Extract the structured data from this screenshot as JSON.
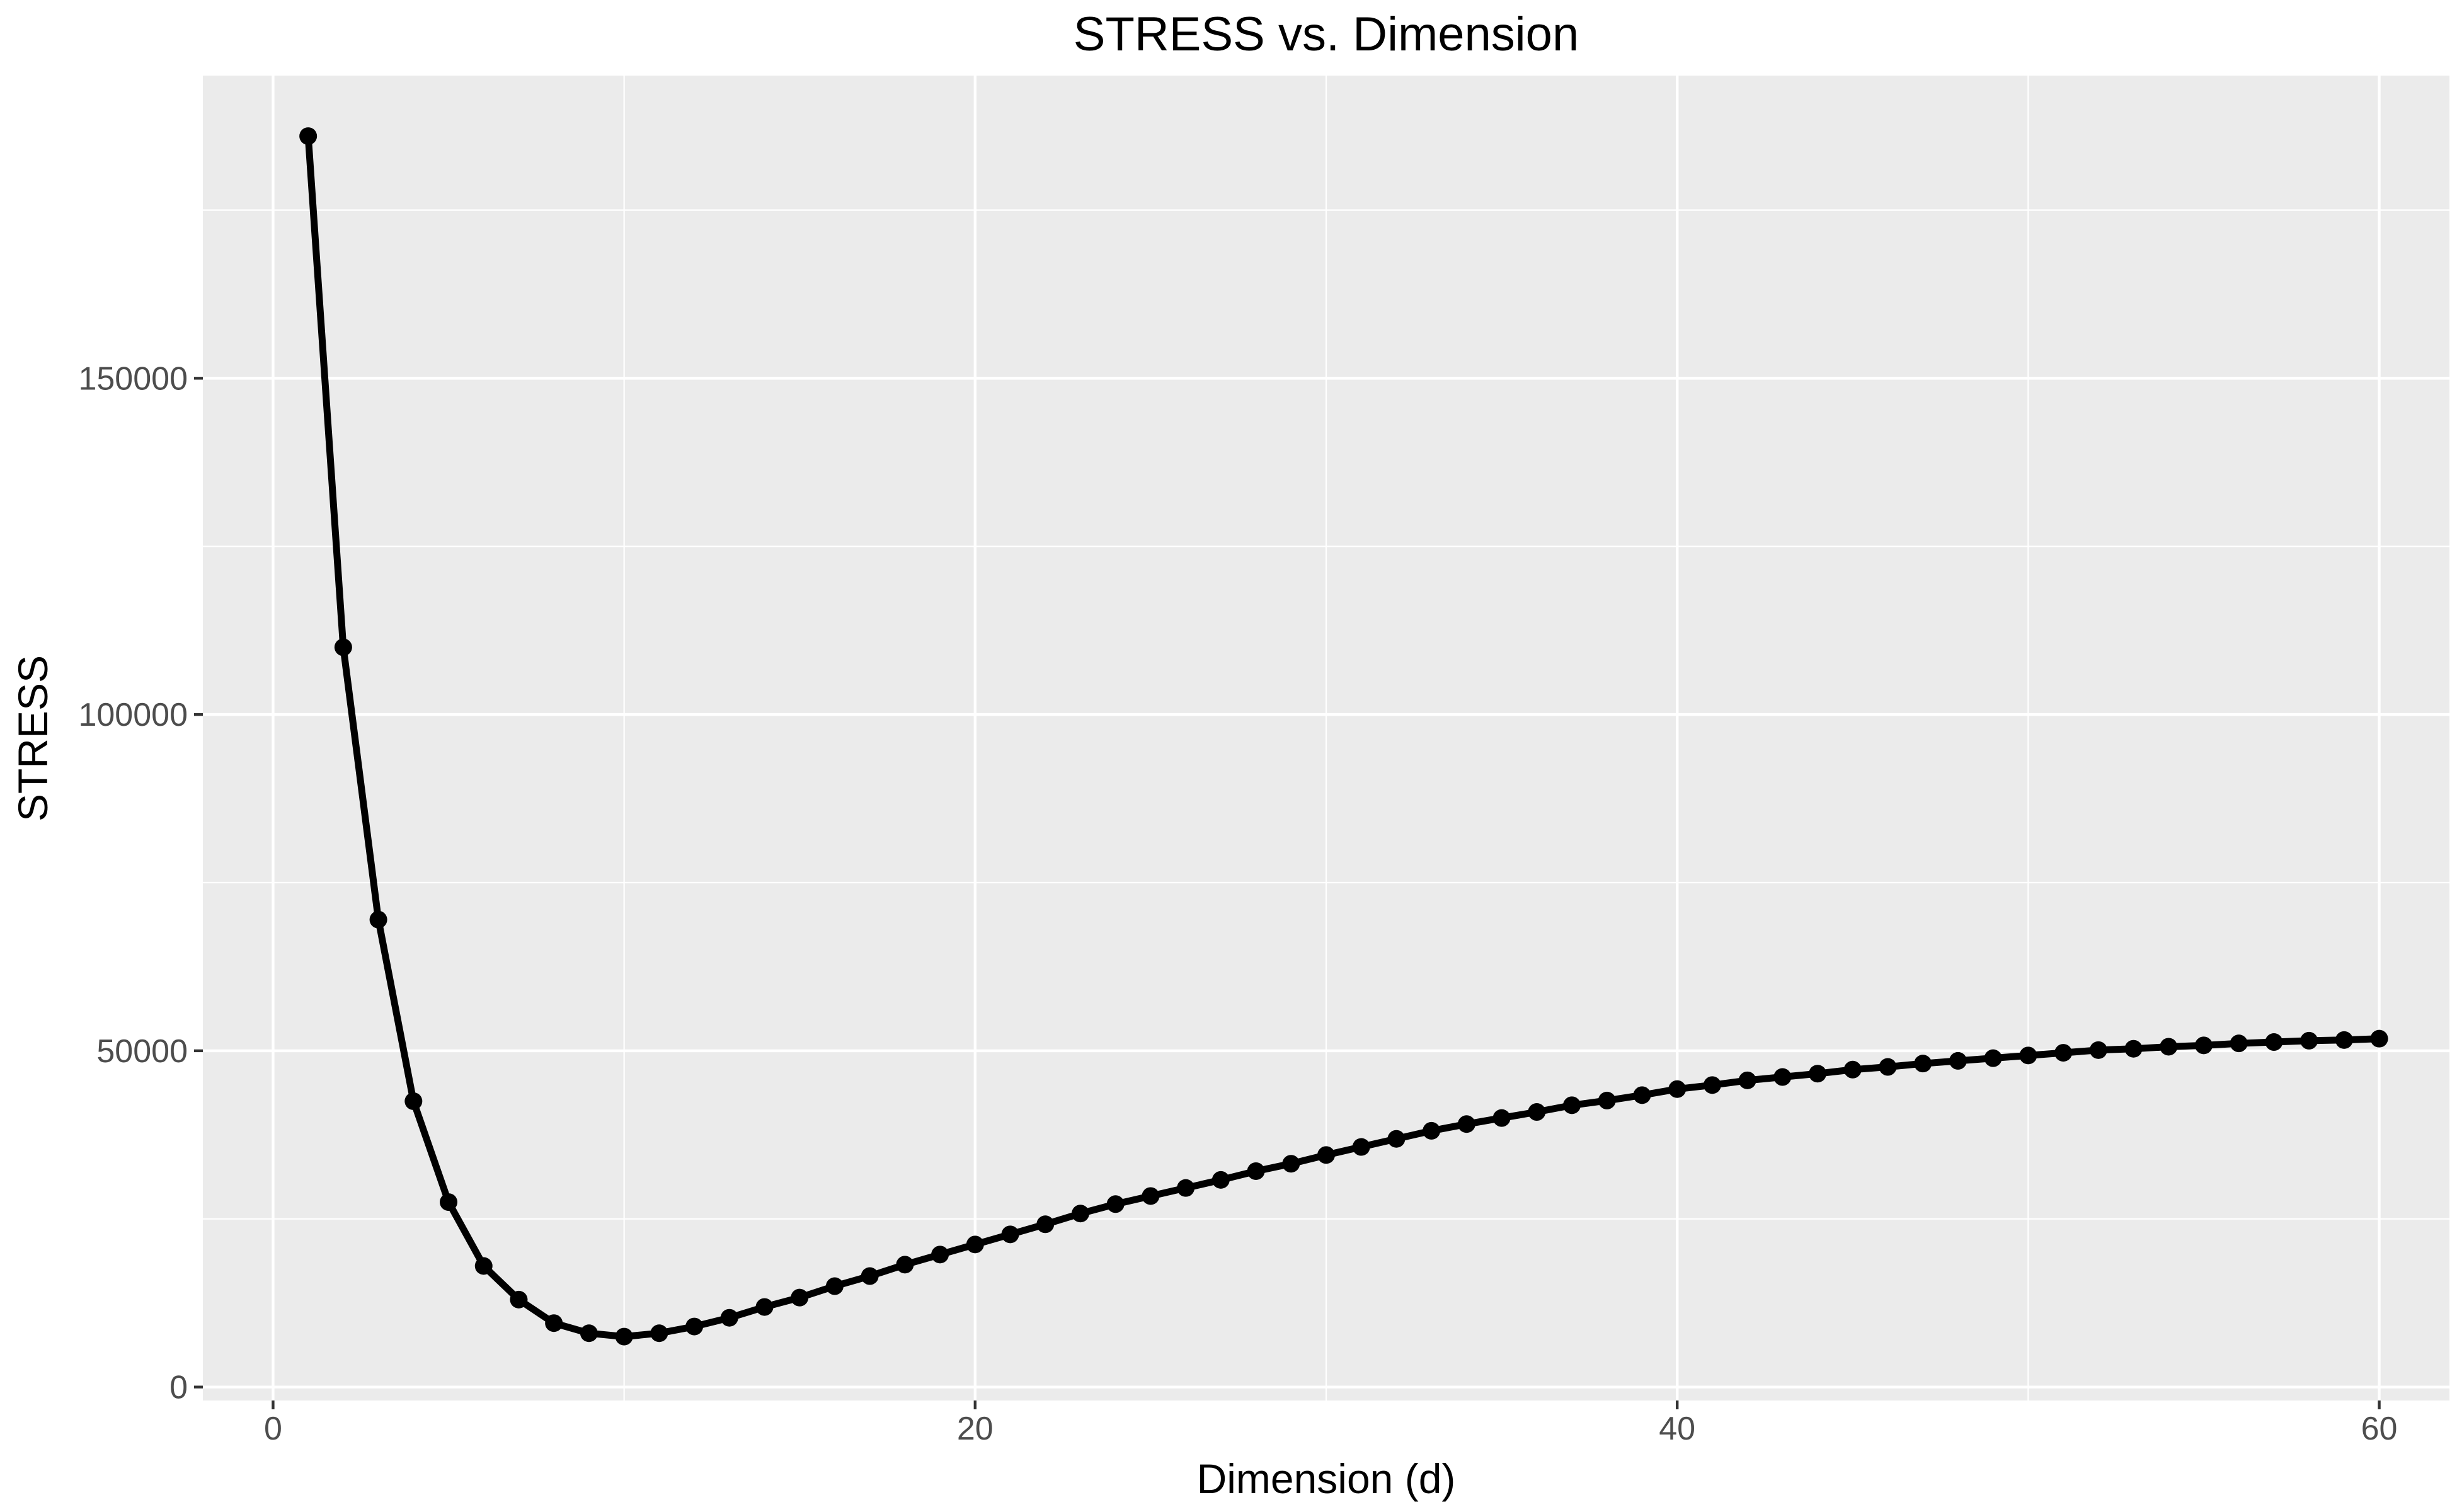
{
  "chart_data": {
    "type": "line",
    "title": "STRESS vs. Dimension",
    "xlabel": "Dimension (d)",
    "ylabel": "STRESS",
    "xlim": [
      -2,
      62
    ],
    "ylim": [
      -2000,
      195000
    ],
    "x_ticks": [
      0,
      20,
      40,
      60
    ],
    "y_ticks": [
      0,
      50000,
      100000,
      150000
    ],
    "x_tick_labels": [
      "0",
      "20",
      "40",
      "60"
    ],
    "y_tick_labels": [
      "0",
      "50000",
      "100000",
      "150000"
    ],
    "x_minor_ticks": [
      10,
      30,
      50
    ],
    "y_minor_ticks": [
      25000,
      75000,
      125000,
      175000
    ],
    "grid": true,
    "legend": "none",
    "colors": {
      "panel": "#ebebeb",
      "grid": "#ffffff",
      "line": "#000000",
      "tick_text": "#4d4d4d",
      "tick_mark": "#333333"
    },
    "series": [
      {
        "x": [
          1,
          2,
          3,
          4,
          5,
          6,
          7,
          8,
          9,
          10,
          11,
          12,
          13,
          14,
          15,
          16,
          17,
          18,
          19,
          20,
          21,
          22,
          23,
          24,
          25,
          26,
          27,
          28,
          29,
          30,
          31,
          32,
          33,
          34,
          35,
          36,
          37,
          38,
          39,
          40,
          41,
          42,
          43,
          44,
          45,
          46,
          47,
          48,
          49,
          50,
          51,
          52,
          53,
          54,
          55,
          56,
          57,
          58,
          59,
          60
        ],
        "y": [
          186000,
          110000,
          69500,
          42500,
          27500,
          18000,
          13000,
          9500,
          8000,
          7500,
          8000,
          9000,
          10300,
          11900,
          13300,
          15000,
          16500,
          18200,
          19700,
          21200,
          22700,
          24200,
          25800,
          27200,
          28400,
          29600,
          30800,
          32100,
          33200,
          34500,
          35700,
          36900,
          38100,
          39100,
          40000,
          40900,
          41900,
          42600,
          43400,
          44300,
          44900,
          45600,
          46100,
          46600,
          47200,
          47600,
          48100,
          48500,
          48900,
          49300,
          49700,
          50100,
          50300,
          50600,
          50800,
          51100,
          51300,
          51500,
          51600,
          51800
        ]
      }
    ]
  }
}
